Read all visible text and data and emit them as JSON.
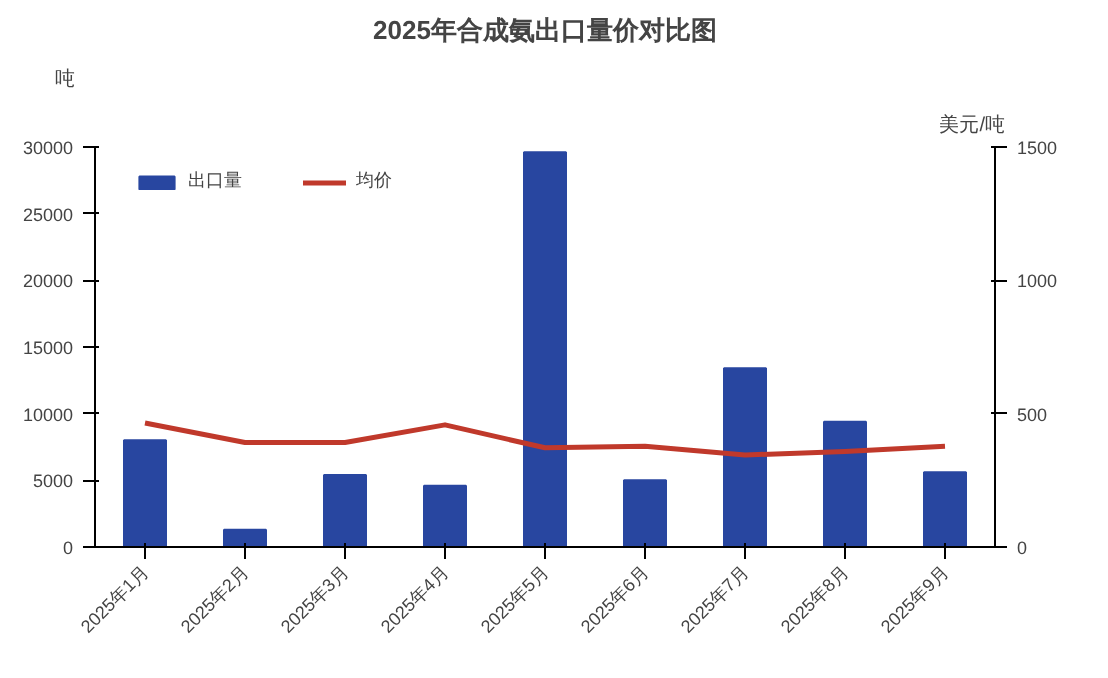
{
  "chart_data": {
    "type": "bar",
    "title": "2025年合成氨出口量价对比图",
    "ylabel": "吨",
    "y2label": "美元/吨",
    "categories": [
      "2025年1月",
      "2025年2月",
      "2025年3月",
      "2025年4月",
      "2025年5月",
      "2025年6月",
      "2025年7月",
      "2025年8月",
      "2025年9月"
    ],
    "series": [
      {
        "name": "出口量",
        "color": "#2846a0",
        "values": [
          8000,
          1300,
          5400,
          4600,
          29600,
          5000,
          13400,
          9400,
          5600
        ]
      },
      {
        "name": "均价",
        "type": "line",
        "axis": "y2",
        "color": "#c0392b",
        "values": [
          465,
          392,
          392,
          458,
          372,
          378,
          345,
          358,
          378
        ]
      }
    ],
    "ylim": [
      0,
      30000
    ],
    "yticks": [
      0,
      5000,
      10000,
      15000,
      20000,
      25000,
      30000
    ],
    "y2lim": [
      0,
      1500
    ],
    "y2ticks": [
      0,
      500,
      1000,
      1500
    ],
    "grid": false,
    "legend": "top"
  }
}
